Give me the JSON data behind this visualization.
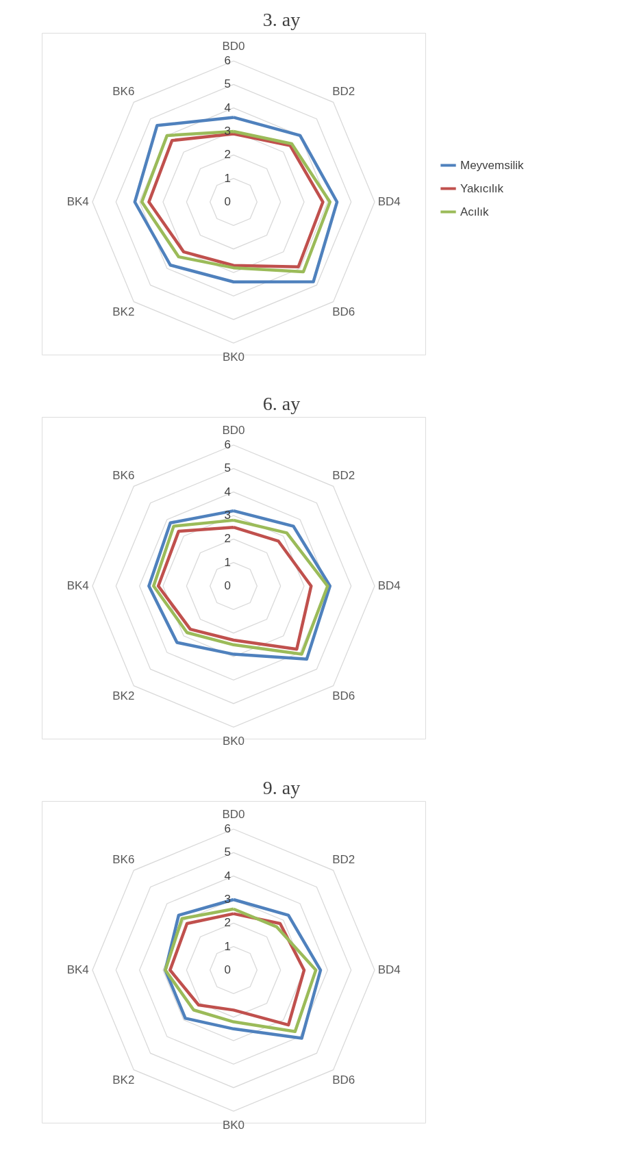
{
  "chart_data": [
    {
      "type": "radar",
      "title": "3. ay",
      "categories": [
        "BD0",
        "BD2",
        "BD4",
        "BD6",
        "BK0",
        "BK2",
        "BK4",
        "BK6"
      ],
      "ylim": [
        0,
        6
      ],
      "yticks": [
        0,
        1,
        2,
        3,
        4,
        5,
        6
      ],
      "grid": true,
      "legend": "right",
      "line_style": "solid",
      "marker": "none",
      "series": [
        {
          "name": "Meyvemsilik",
          "color": "#4f81bd",
          "values": [
            3.6,
            4.0,
            4.4,
            4.8,
            3.4,
            3.8,
            4.2,
            4.6
          ]
        },
        {
          "name": "Yakıcılık",
          "color": "#c0504d",
          "values": [
            2.9,
            3.4,
            3.8,
            3.9,
            2.7,
            3.0,
            3.6,
            3.7
          ]
        },
        {
          "name": "Acılık",
          "color": "#9bbb59",
          "values": [
            3.0,
            3.5,
            4.1,
            4.2,
            2.8,
            3.3,
            3.9,
            4.0
          ]
        }
      ]
    },
    {
      "type": "radar",
      "title": "6. ay",
      "categories": [
        "BD0",
        "BD2",
        "BD4",
        "BD6",
        "BK0",
        "BK2",
        "BK4",
        "BK6"
      ],
      "ylim": [
        0,
        6
      ],
      "yticks": [
        0,
        1,
        2,
        3,
        4,
        5,
        6
      ],
      "grid": true,
      "legend": "right",
      "line_style": "solid",
      "marker": "none",
      "series": [
        {
          "name": "Meyvemsilik",
          "color": "#4f81bd",
          "values": [
            3.2,
            3.6,
            4.1,
            4.4,
            2.9,
            3.4,
            3.6,
            3.8
          ]
        },
        {
          "name": "Yakıcılık",
          "color": "#c0504d",
          "values": [
            2.5,
            2.7,
            3.3,
            3.8,
            2.3,
            2.6,
            3.2,
            3.3
          ]
        },
        {
          "name": "Acılık",
          "color": "#9bbb59",
          "values": [
            2.8,
            3.2,
            4.0,
            4.1,
            2.5,
            2.8,
            3.4,
            3.6
          ]
        }
      ]
    },
    {
      "type": "radar",
      "title": "9. ay",
      "categories": [
        "BD0",
        "BD2",
        "BD4",
        "BD6",
        "BK0",
        "BK2",
        "BK4",
        "BK6"
      ],
      "ylim": [
        0,
        6
      ],
      "yticks": [
        0,
        1,
        2,
        3,
        4,
        5,
        6
      ],
      "grid": true,
      "legend": "right",
      "line_style": "solid",
      "marker": "none",
      "series": [
        {
          "name": "Meyvemsilik",
          "color": "#4f81bd",
          "values": [
            3.0,
            3.3,
            3.7,
            4.1,
            2.5,
            2.9,
            2.9,
            3.3
          ]
        },
        {
          "name": "Yakıcılık",
          "color": "#c0504d",
          "values": [
            2.4,
            2.8,
            3.0,
            3.3,
            1.7,
            2.1,
            2.7,
            2.8
          ]
        },
        {
          "name": "Acılık",
          "color": "#9bbb59",
          "values": [
            2.6,
            2.6,
            3.5,
            3.7,
            2.2,
            2.4,
            2.9,
            3.1
          ]
        }
      ]
    }
  ]
}
